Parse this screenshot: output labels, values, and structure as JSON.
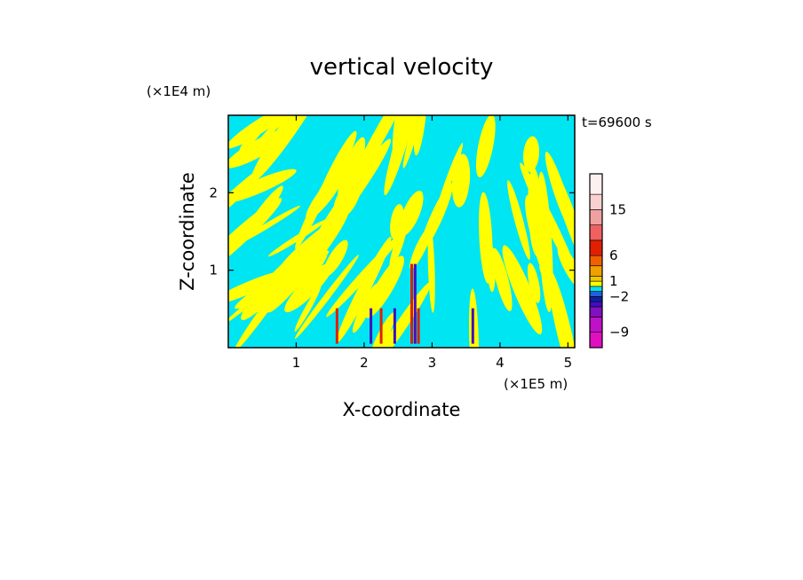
{
  "chart_data": {
    "type": "heatmap",
    "title": "vertical velocity",
    "xlabel": "X-coordinate",
    "ylabel": "Z-coordinate",
    "x_scale_label": "(×1E5 m)",
    "y_scale_label": "(×1E4 m)",
    "time_label": "t=69600 s",
    "xlim": [
      0,
      5.1
    ],
    "ylim": [
      0,
      3.0
    ],
    "x_ticks": [
      {
        "value": 1,
        "label": "1"
      },
      {
        "value": 2,
        "label": "2"
      },
      {
        "value": 3,
        "label": "3"
      },
      {
        "value": 4,
        "label": "4"
      },
      {
        "value": 5,
        "label": "5"
      }
    ],
    "y_ticks": [
      {
        "value": 1,
        "label": "1"
      },
      {
        "value": 2,
        "label": "2"
      }
    ],
    "colorbar": {
      "levels": [
        {
          "lower": -12,
          "upper": -9,
          "color": "#e010c0"
        },
        {
          "lower": -9,
          "upper": -6,
          "color": "#c010c8"
        },
        {
          "lower": -6,
          "upper": -4,
          "color": "#8010c0"
        },
        {
          "lower": -4,
          "upper": -3,
          "color": "#4010c0"
        },
        {
          "lower": -3,
          "upper": -2,
          "color": "#1020a0"
        },
        {
          "lower": -2,
          "upper": -1,
          "color": "#2060e0"
        },
        {
          "lower": -1,
          "upper": 0,
          "color": "#00e0f0"
        },
        {
          "lower": 0,
          "upper": 1,
          "color": "#ffff00"
        },
        {
          "lower": 1,
          "upper": 2,
          "color": "#f0c800"
        },
        {
          "lower": 2,
          "upper": 4,
          "color": "#f0a000"
        },
        {
          "lower": 4,
          "upper": 6,
          "color": "#f06000"
        },
        {
          "lower": 6,
          "upper": 9,
          "color": "#e02000"
        },
        {
          "lower": 9,
          "upper": 12,
          "color": "#f06060"
        },
        {
          "lower": 12,
          "upper": 15,
          "color": "#f0a0a0"
        },
        {
          "lower": 15,
          "upper": 18,
          "color": "#f8d0d0"
        },
        {
          "lower": 18,
          "upper": 22,
          "color": "#fff0f0"
        }
      ],
      "labels": [
        {
          "value": 15,
          "label": "15"
        },
        {
          "value": 6,
          "label": "6"
        },
        {
          "value": 1,
          "label": "1"
        },
        {
          "value": -2,
          "label": "−2"
        },
        {
          "value": -9,
          "label": "−9"
        }
      ]
    },
    "field": {
      "background_color": "#00e5f2",
      "positive_color": "#ffff00",
      "description_colors": {
        "strong_positive": "#e02000",
        "strong_negative": "#4010c0"
      }
    }
  }
}
